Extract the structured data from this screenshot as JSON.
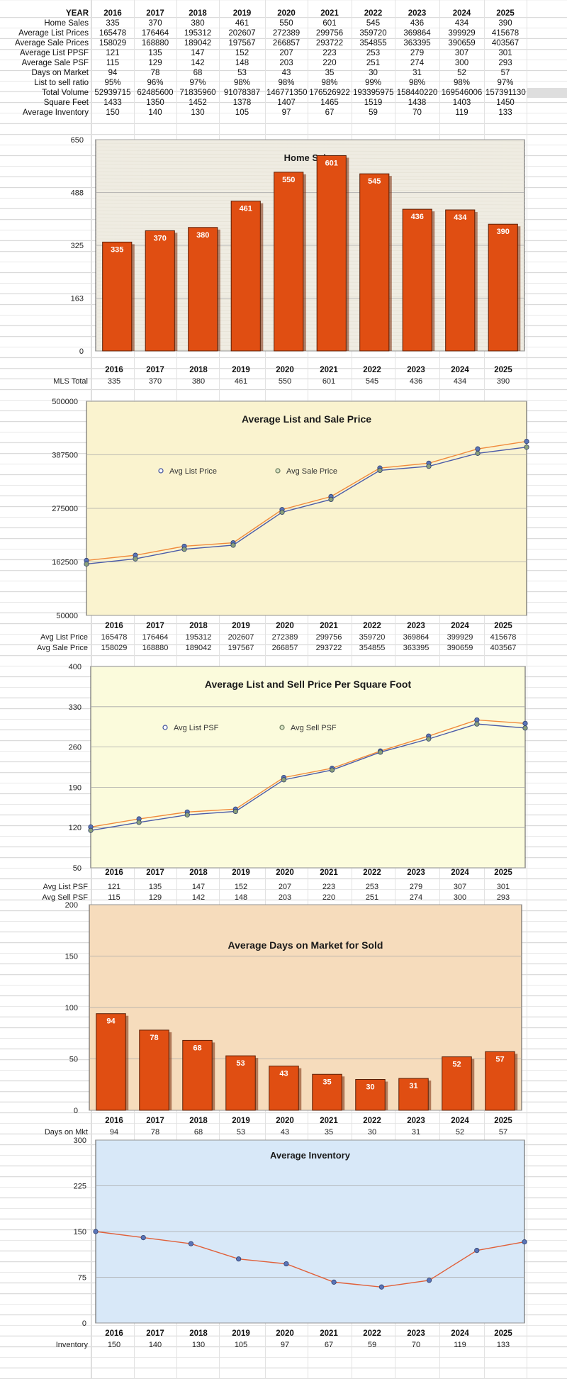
{
  "summary": {
    "header_label": "YEAR",
    "years": [
      "2016",
      "2017",
      "2018",
      "2019",
      "2020",
      "2021",
      "2022",
      "2023",
      "2024",
      "2025"
    ],
    "rows": [
      {
        "label": "Home Sales",
        "values": [
          "335",
          "370",
          "380",
          "461",
          "550",
          "601",
          "545",
          "436",
          "434",
          "390"
        ]
      },
      {
        "label": "Average List Prices",
        "values": [
          "165478",
          "176464",
          "195312",
          "202607",
          "272389",
          "299756",
          "359720",
          "369864",
          "399929",
          "415678"
        ]
      },
      {
        "label": "Average Sale Prices",
        "values": [
          "158029",
          "168880",
          "189042",
          "197567",
          "266857",
          "293722",
          "354855",
          "363395",
          "390659",
          "403567"
        ]
      },
      {
        "label": "Average List PPSF",
        "values": [
          "121",
          "135",
          "147",
          "152",
          "207",
          "223",
          "253",
          "279",
          "307",
          "301"
        ]
      },
      {
        "label": "Average Sale PSF",
        "values": [
          "115",
          "129",
          "142",
          "148",
          "203",
          "220",
          "251",
          "274",
          "300",
          "293"
        ]
      },
      {
        "label": "Days on Market",
        "values": [
          "94",
          "78",
          "68",
          "53",
          "43",
          "35",
          "30",
          "31",
          "52",
          "57"
        ]
      },
      {
        "label": "List to sell ratio",
        "values": [
          "95%",
          "96%",
          "97%",
          "98%",
          "98%",
          "98%",
          "99%",
          "98%",
          "98%",
          "97%"
        ]
      },
      {
        "label": "Total Volume",
        "values": [
          "52939715",
          "62485600",
          "71835960",
          "91078387",
          "146771350",
          "176526922",
          "193395975",
          "158440220",
          "169546006",
          "157391130"
        ]
      },
      {
        "label": "Square Feet",
        "values": [
          "1433",
          "1350",
          "1452",
          "1378",
          "1407",
          "1465",
          "1519",
          "1438",
          "1403",
          "1450"
        ]
      },
      {
        "label": "Average Inventory",
        "values": [
          "150",
          "140",
          "130",
          "105",
          "97",
          "67",
          "59",
          "70",
          "119",
          "133"
        ]
      }
    ]
  },
  "chart_data": [
    {
      "type": "bar",
      "title": "Home Sales",
      "categories": [
        "2016",
        "2017",
        "2018",
        "2019",
        "2020",
        "2021",
        "2022",
        "2023",
        "2024",
        "2025"
      ],
      "values": [
        335,
        370,
        380,
        461,
        550,
        601,
        545,
        436,
        434,
        390
      ],
      "ylim": [
        0,
        650
      ],
      "yticks": [
        "0",
        "163",
        "325",
        "488",
        "650"
      ],
      "bar_color": "#e04e12",
      "plot_bg": "#efece2",
      "grid": true,
      "table": {
        "row_label": "MLS Total",
        "values": [
          "335",
          "370",
          "380",
          "461",
          "550",
          "601",
          "545",
          "436",
          "434",
          "390"
        ]
      }
    },
    {
      "type": "line",
      "title": "Average List and Sale Price",
      "categories": [
        "2016",
        "2017",
        "2018",
        "2019",
        "2020",
        "2021",
        "2022",
        "2023",
        "2024",
        "2025"
      ],
      "series": [
        {
          "name": "Avg List Price",
          "values": [
            165478,
            176464,
            195312,
            202607,
            272389,
            299756,
            359720,
            369864,
            399929,
            415678
          ],
          "color": "#f08a3c"
        },
        {
          "name": "Avg Sale Price",
          "values": [
            158029,
            168880,
            189042,
            197567,
            266857,
            293722,
            354855,
            363395,
            390659,
            403567
          ],
          "color": "#4a5aa8"
        }
      ],
      "ylim": [
        50000,
        500000
      ],
      "yticks": [
        "50000",
        "162500",
        "275000",
        "387500",
        "500000"
      ],
      "legend": "top-left",
      "plot_bg": "#faf3cf",
      "grid": true,
      "table": [
        {
          "row_label": "Avg List Price",
          "values": [
            "165478",
            "176464",
            "195312",
            "202607",
            "272389",
            "299756",
            "359720",
            "369864",
            "399929",
            "415678"
          ]
        },
        {
          "row_label": "Avg Sale Price",
          "values": [
            "158029",
            "168880",
            "189042",
            "197567",
            "266857",
            "293722",
            "354855",
            "363395",
            "390659",
            "403567"
          ]
        }
      ]
    },
    {
      "type": "line",
      "title": "Average List and Sell Price Per Square Foot",
      "categories": [
        "2016",
        "2017",
        "2018",
        "2019",
        "2020",
        "2021",
        "2022",
        "2023",
        "2024",
        "2025"
      ],
      "series": [
        {
          "name": "Avg List PSF",
          "values": [
            121,
            135,
            147,
            152,
            207,
            223,
            253,
            279,
            307,
            301
          ],
          "color": "#f08a3c"
        },
        {
          "name": "Avg Sell PSF",
          "values": [
            115,
            129,
            142,
            148,
            203,
            220,
            251,
            274,
            300,
            293
          ],
          "color": "#4a5aa8"
        }
      ],
      "ylim": [
        50,
        400
      ],
      "yticks": [
        "50",
        "120",
        "190",
        "260",
        "330",
        "400"
      ],
      "legend": "top-left",
      "plot_bg": "#fbfbdc",
      "grid": true,
      "table": [
        {
          "row_label": "Avg List PSF",
          "values": [
            "121",
            "135",
            "147",
            "152",
            "207",
            "223",
            "253",
            "279",
            "307",
            "301"
          ]
        },
        {
          "row_label": "Avg Sell PSF",
          "values": [
            "115",
            "129",
            "142",
            "148",
            "203",
            "220",
            "251",
            "274",
            "300",
            "293"
          ]
        }
      ]
    },
    {
      "type": "bar",
      "title": "Average Days on Market for Sold",
      "categories": [
        "2016",
        "2017",
        "2018",
        "2019",
        "2020",
        "2021",
        "2022",
        "2023",
        "2024",
        "2025"
      ],
      "values": [
        94,
        78,
        68,
        53,
        43,
        35,
        30,
        31,
        52,
        57
      ],
      "ylim": [
        0,
        200
      ],
      "yticks": [
        "0",
        "50",
        "100",
        "150",
        "200"
      ],
      "bar_color": "#e04e12",
      "plot_bg": "#f6dcbc",
      "grid": true,
      "table": {
        "row_label": "Days on Mkt",
        "values": [
          "94",
          "78",
          "68",
          "53",
          "43",
          "35",
          "30",
          "31",
          "52",
          "57"
        ]
      }
    },
    {
      "type": "line",
      "title": "Average Inventory",
      "categories": [
        "2016",
        "2017",
        "2018",
        "2019",
        "2020",
        "2021",
        "2022",
        "2023",
        "2024",
        "2025"
      ],
      "series": [
        {
          "name": "",
          "values": [
            150,
            140,
            130,
            105,
            97,
            67,
            59,
            70,
            119,
            133
          ],
          "color": "#e0603a"
        }
      ],
      "ylim": [
        0,
        300
      ],
      "yticks": [
        "0",
        "75",
        "150",
        "225",
        "300"
      ],
      "plot_bg": "#d8e8f8",
      "grid": true,
      "table": {
        "row_label": "Inventory",
        "values": [
          "150",
          "140",
          "130",
          "105",
          "97",
          "67",
          "59",
          "70",
          "119",
          "133"
        ]
      }
    }
  ]
}
